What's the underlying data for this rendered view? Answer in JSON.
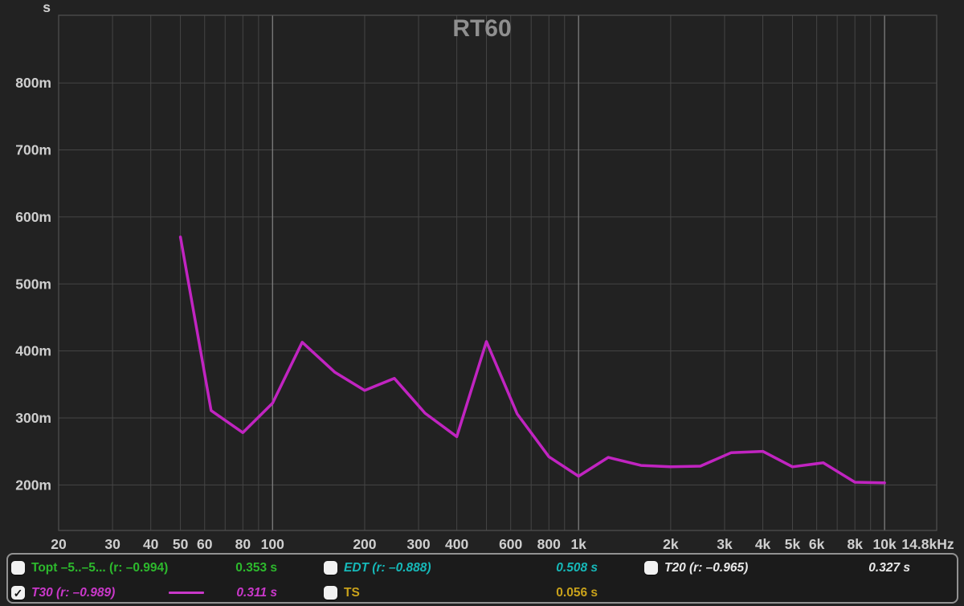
{
  "title": "RT60",
  "colors": {
    "background": "#222222",
    "plot_border": "#505050",
    "grid_minor": "#454545",
    "grid_major": "#858585",
    "axis_text": "#cfcfcf",
    "title_text": "#8f8f8f",
    "t30_curve": "#c124c1"
  },
  "chart_data": {
    "type": "line",
    "title": "RT60",
    "y_unit_label": "s",
    "x_scale": "log",
    "xlim": [
      20,
      14800
    ],
    "ylim": [
      0.132,
      0.901
    ],
    "grid": true,
    "x_major_gridlines": [
      100,
      1000,
      10000
    ],
    "x_minor_gridlines": [
      30,
      40,
      50,
      60,
      70,
      80,
      90,
      200,
      300,
      400,
      500,
      600,
      700,
      800,
      900,
      2000,
      3000,
      4000,
      5000,
      6000,
      7000,
      8000,
      9000
    ],
    "x_ticks": [
      {
        "f": 20,
        "label": "20"
      },
      {
        "f": 30,
        "label": "30"
      },
      {
        "f": 40,
        "label": "40"
      },
      {
        "f": 50,
        "label": "50"
      },
      {
        "f": 60,
        "label": "60"
      },
      {
        "f": 80,
        "label": "80"
      },
      {
        "f": 100,
        "label": "100"
      },
      {
        "f": 200,
        "label": "200"
      },
      {
        "f": 300,
        "label": "300"
      },
      {
        "f": 400,
        "label": "400"
      },
      {
        "f": 600,
        "label": "600"
      },
      {
        "f": 800,
        "label": "800"
      },
      {
        "f": 1000,
        "label": "1k"
      },
      {
        "f": 2000,
        "label": "2k"
      },
      {
        "f": 3000,
        "label": "3k"
      },
      {
        "f": 4000,
        "label": "4k"
      },
      {
        "f": 5000,
        "label": "5k"
      },
      {
        "f": 6000,
        "label": "6k"
      },
      {
        "f": 8000,
        "label": "8k"
      },
      {
        "f": 10000,
        "label": "10k"
      },
      {
        "f": 14800,
        "label": "14.8kHz"
      }
    ],
    "y_ticks": [
      {
        "v": 0.2,
        "label": "200m"
      },
      {
        "v": 0.3,
        "label": "300m"
      },
      {
        "v": 0.4,
        "label": "400m"
      },
      {
        "v": 0.5,
        "label": "500m"
      },
      {
        "v": 0.6,
        "label": "600m"
      },
      {
        "v": 0.7,
        "label": "700m"
      },
      {
        "v": 0.8,
        "label": "800m"
      }
    ],
    "series": [
      {
        "name": "T30",
        "color": "#c124c1",
        "x": [
          50,
          63,
          80,
          100,
          125,
          160,
          200,
          250,
          315,
          400,
          500,
          630,
          800,
          1000,
          1250,
          1600,
          2000,
          2500,
          3150,
          4000,
          5000,
          6300,
          8000,
          10000
        ],
        "values": [
          0.57,
          0.311,
          0.278,
          0.322,
          0.413,
          0.368,
          0.341,
          0.359,
          0.307,
          0.272,
          0.414,
          0.306,
          0.242,
          0.213,
          0.241,
          0.229,
          0.227,
          0.228,
          0.248,
          0.25,
          0.227,
          0.233,
          0.204,
          0.203
        ]
      }
    ]
  },
  "legend": {
    "cells": [
      {
        "label": "Topt –5..–5... (r: –0.994)",
        "value": "0.353 s",
        "color": "#2db92d",
        "checked": false,
        "italic": false,
        "swatch": false
      },
      {
        "label": "EDT (r: –0.888)",
        "value": "0.508 s",
        "color": "#16b8b8",
        "checked": false,
        "italic": true,
        "swatch": false
      },
      {
        "label": "T20 (r: –0.965)",
        "value": "0.327 s",
        "color": "#e8e8e8",
        "checked": false,
        "italic": true,
        "swatch": false
      },
      {
        "label": "T30 (r: –0.989)",
        "value": "0.311 s",
        "color": "#c938c9",
        "checked": true,
        "italic": true,
        "swatch": true
      },
      {
        "label": "TS",
        "value": "0.056 s",
        "color": "#c9a21b",
        "checked": false,
        "italic": false,
        "swatch": false
      }
    ]
  }
}
